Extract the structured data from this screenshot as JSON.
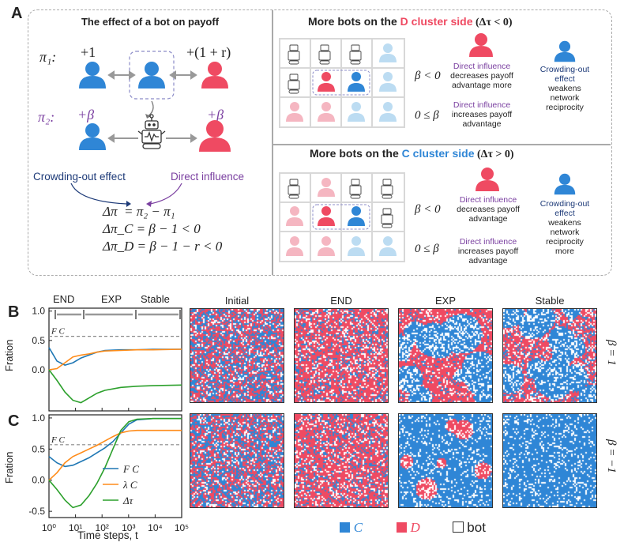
{
  "panel_letters": {
    "a": "A",
    "b": "B",
    "c": "C"
  },
  "colors": {
    "blue": "#2f86d6",
    "red": "#ef4a62",
    "light_blue": "#bcdcf2",
    "light_red": "#f5b6c1",
    "purple": "#7a3fa0",
    "navy": "#1d3a78",
    "green": "#2ca02c",
    "orange": "#ff8c1a",
    "line_blue": "#1f77b4"
  },
  "left_panel": {
    "title": "The effect of a bot on payoff",
    "pi1_label": "π₁:",
    "pi1_left": "+1",
    "pi1_right": "+(1 + r)",
    "pi2_label": "π₂:",
    "pi2_left": "+β",
    "pi2_right": "+β",
    "crowding_label": "Crowding-out effect",
    "direct_label": "Direct influence",
    "eq1": "Δπ  = π₂ − π₁",
    "eq2": "Δπ_C = β − 1 < 0",
    "eq3": "Δπ_D = β − 1 − r < 0"
  },
  "top_right": {
    "title_pre": "More bots on the ",
    "title_color": "D cluster side",
    "title_post": " (Δτ < 0)",
    "beta_neg": "β < 0",
    "beta_pos": "0 ≤ β",
    "di_neg_head": "Direct influence",
    "di_neg_body": "decreases payoff advantage  more",
    "di_pos_head": "Direct influence",
    "di_pos_body": "increases payoff advantage",
    "crowd_head": "Crowding-out effect",
    "crowd_body": "weakens network reciprocity"
  },
  "bottom_right": {
    "title_pre": "More bots on the ",
    "title_color": "C cluster side",
    "title_post": " (Δτ > 0)",
    "beta_neg": "β < 0",
    "beta_pos": "0 ≤ β",
    "di_neg_head": "Direct influence",
    "di_neg_body": "decreases payoff advantage",
    "di_pos_head": "Direct influence",
    "di_pos_body": "increases payoff advantage",
    "crowd_head": "Crowding-out effect",
    "crowd_body": "weakens network reciprocity more"
  },
  "phase_labels": [
    "END",
    "EXP",
    "Stable"
  ],
  "snapshot_titles": [
    "Initial",
    "END",
    "EXP",
    "Stable"
  ],
  "beta_row_labels": [
    "β = 1",
    "β = −1"
  ],
  "legend": {
    "c": "C",
    "d": "D",
    "bot": "bot"
  },
  "chart_data": [
    {
      "type": "line",
      "panel": "B",
      "title": "",
      "xlabel": "Time steps, t",
      "ylabel": "Fration",
      "xscale": "log",
      "xlim": [
        1,
        100000
      ],
      "ylim": [
        -0.7,
        1.05
      ],
      "yticks": [
        "1.0",
        "0.5",
        "0.0"
      ],
      "reference_line": {
        "label": "F*_C",
        "value": 0.57
      },
      "series": [
        {
          "name": "F_C",
          "color": "#1f77b4",
          "x": [
            1,
            2,
            4,
            8,
            16,
            32,
            64,
            128,
            512,
            2048,
            8192,
            100000
          ],
          "values": [
            0.38,
            0.15,
            0.08,
            0.12,
            0.2,
            0.25,
            0.3,
            0.33,
            0.34,
            0.34,
            0.35,
            0.35
          ]
        },
        {
          "name": "λ_C",
          "color": "#ff8c1a",
          "x": [
            1,
            2,
            4,
            8,
            16,
            32,
            64,
            128,
            512,
            2048,
            8192,
            100000
          ],
          "values": [
            0.0,
            0.02,
            0.12,
            0.22,
            0.25,
            0.27,
            0.3,
            0.32,
            0.33,
            0.34,
            0.34,
            0.35
          ]
        },
        {
          "name": "Δτ",
          "color": "#2ca02c",
          "x": [
            1,
            2,
            4,
            8,
            16,
            32,
            64,
            128,
            512,
            2048,
            8192,
            100000
          ],
          "values": [
            0.0,
            -0.18,
            -0.38,
            -0.52,
            -0.56,
            -0.48,
            -0.4,
            -0.35,
            -0.3,
            -0.28,
            -0.27,
            -0.26
          ]
        }
      ]
    },
    {
      "type": "line",
      "panel": "C",
      "title": "",
      "xlabel": "Time steps, t",
      "ylabel": "Fration",
      "xscale": "log",
      "xlim": [
        1,
        100000
      ],
      "ylim": [
        -0.6,
        1.05
      ],
      "yticks": [
        "1.0",
        "0.5",
        "0.0",
        "-0.5"
      ],
      "xticks": [
        "10⁰",
        "10¹",
        "10²",
        "10³",
        "10⁴",
        "10⁵"
      ],
      "reference_line": {
        "label": "F*_C",
        "value": 0.57
      },
      "legend": [
        "F_C",
        "λ_C",
        "Δτ"
      ],
      "series": [
        {
          "name": "F_C",
          "color": "#1f77b4",
          "x": [
            1,
            2,
            4,
            8,
            16,
            32,
            64,
            128,
            256,
            512,
            1024,
            2048,
            8192,
            100000
          ],
          "values": [
            0.38,
            0.28,
            0.22,
            0.24,
            0.3,
            0.36,
            0.44,
            0.52,
            0.62,
            0.76,
            0.9,
            0.97,
            0.99,
            0.99
          ]
        },
        {
          "name": "λ_C",
          "color": "#ff8c1a",
          "x": [
            1,
            2,
            4,
            8,
            16,
            32,
            64,
            128,
            256,
            512,
            1024,
            2048,
            8192,
            100000
          ],
          "values": [
            0.0,
            0.12,
            0.28,
            0.38,
            0.44,
            0.5,
            0.56,
            0.63,
            0.7,
            0.76,
            0.79,
            0.8,
            0.8,
            0.8
          ]
        },
        {
          "name": "Δτ",
          "color": "#2ca02c",
          "x": [
            1,
            2,
            4,
            8,
            16,
            32,
            64,
            128,
            256,
            512,
            1024,
            2048,
            8192,
            100000
          ],
          "values": [
            0.0,
            -0.15,
            -0.32,
            -0.44,
            -0.4,
            -0.25,
            -0.05,
            0.2,
            0.5,
            0.8,
            0.94,
            0.98,
            0.99,
            0.99
          ]
        }
      ]
    }
  ]
}
